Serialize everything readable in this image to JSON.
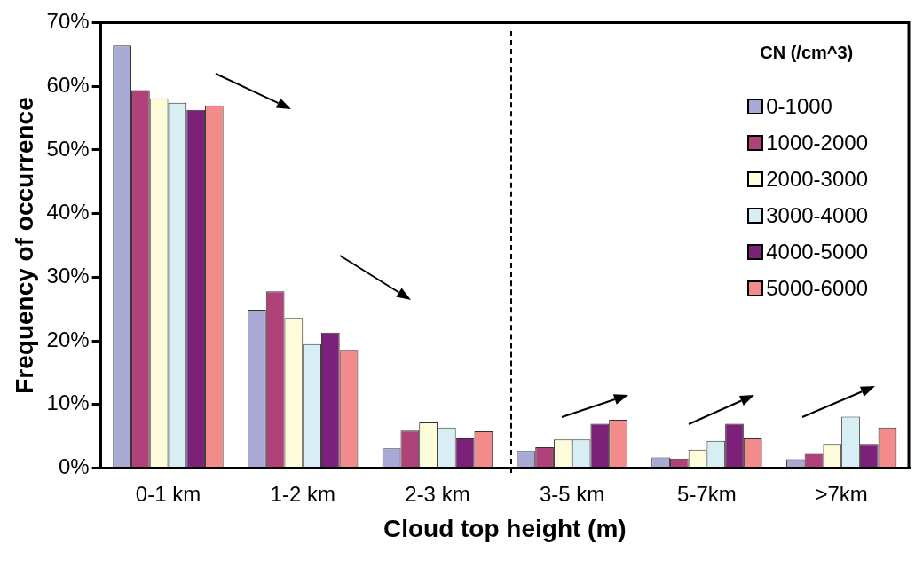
{
  "chart_data": {
    "type": "bar",
    "xlabel": "Cloud top height (m)",
    "ylabel": "Frequency of occurrence",
    "legend_title": "CN (/cm^3)",
    "legend": "top right",
    "categories": [
      "0-1 km",
      "1-2 km",
      "2-3 km",
      "3-5 km",
      "5-7km",
      ">7km"
    ],
    "ylim": [
      0,
      70
    ],
    "yticks": [
      {
        "value": 0,
        "label": "0%"
      },
      {
        "value": 10,
        "label": "10%"
      },
      {
        "value": 20,
        "label": "20%"
      },
      {
        "value": 30,
        "label": "30%"
      },
      {
        "value": 40,
        "label": "40%"
      },
      {
        "value": 50,
        "label": "50%"
      },
      {
        "value": 60,
        "label": "60%"
      },
      {
        "value": 70,
        "label": "70%"
      }
    ],
    "series": [
      {
        "name": "0-1000",
        "color": "#a9a9d6",
        "values": [
          66.4,
          24.9,
          3.1,
          2.7,
          1.7,
          1.4
        ]
      },
      {
        "name": "1000-2000",
        "color": "#b0427a",
        "values": [
          59.4,
          27.8,
          5.9,
          3.3,
          1.5,
          2.4
        ]
      },
      {
        "name": "2000-3000",
        "color": "#fdfbd9",
        "values": [
          58.1,
          23.6,
          7.2,
          4.5,
          2.9,
          3.8
        ]
      },
      {
        "name": "3000-4000",
        "color": "#d8eef5",
        "values": [
          57.4,
          19.5,
          6.4,
          4.5,
          4.3,
          8.1
        ]
      },
      {
        "name": "4000-5000",
        "color": "#7b2179",
        "values": [
          56.3,
          21.3,
          4.7,
          7.0,
          7.0,
          3.8
        ]
      },
      {
        "name": "5000-6000",
        "color": "#f28b8a",
        "values": [
          57.0,
          18.6,
          5.8,
          7.6,
          4.7,
          6.4
        ]
      }
    ]
  }
}
